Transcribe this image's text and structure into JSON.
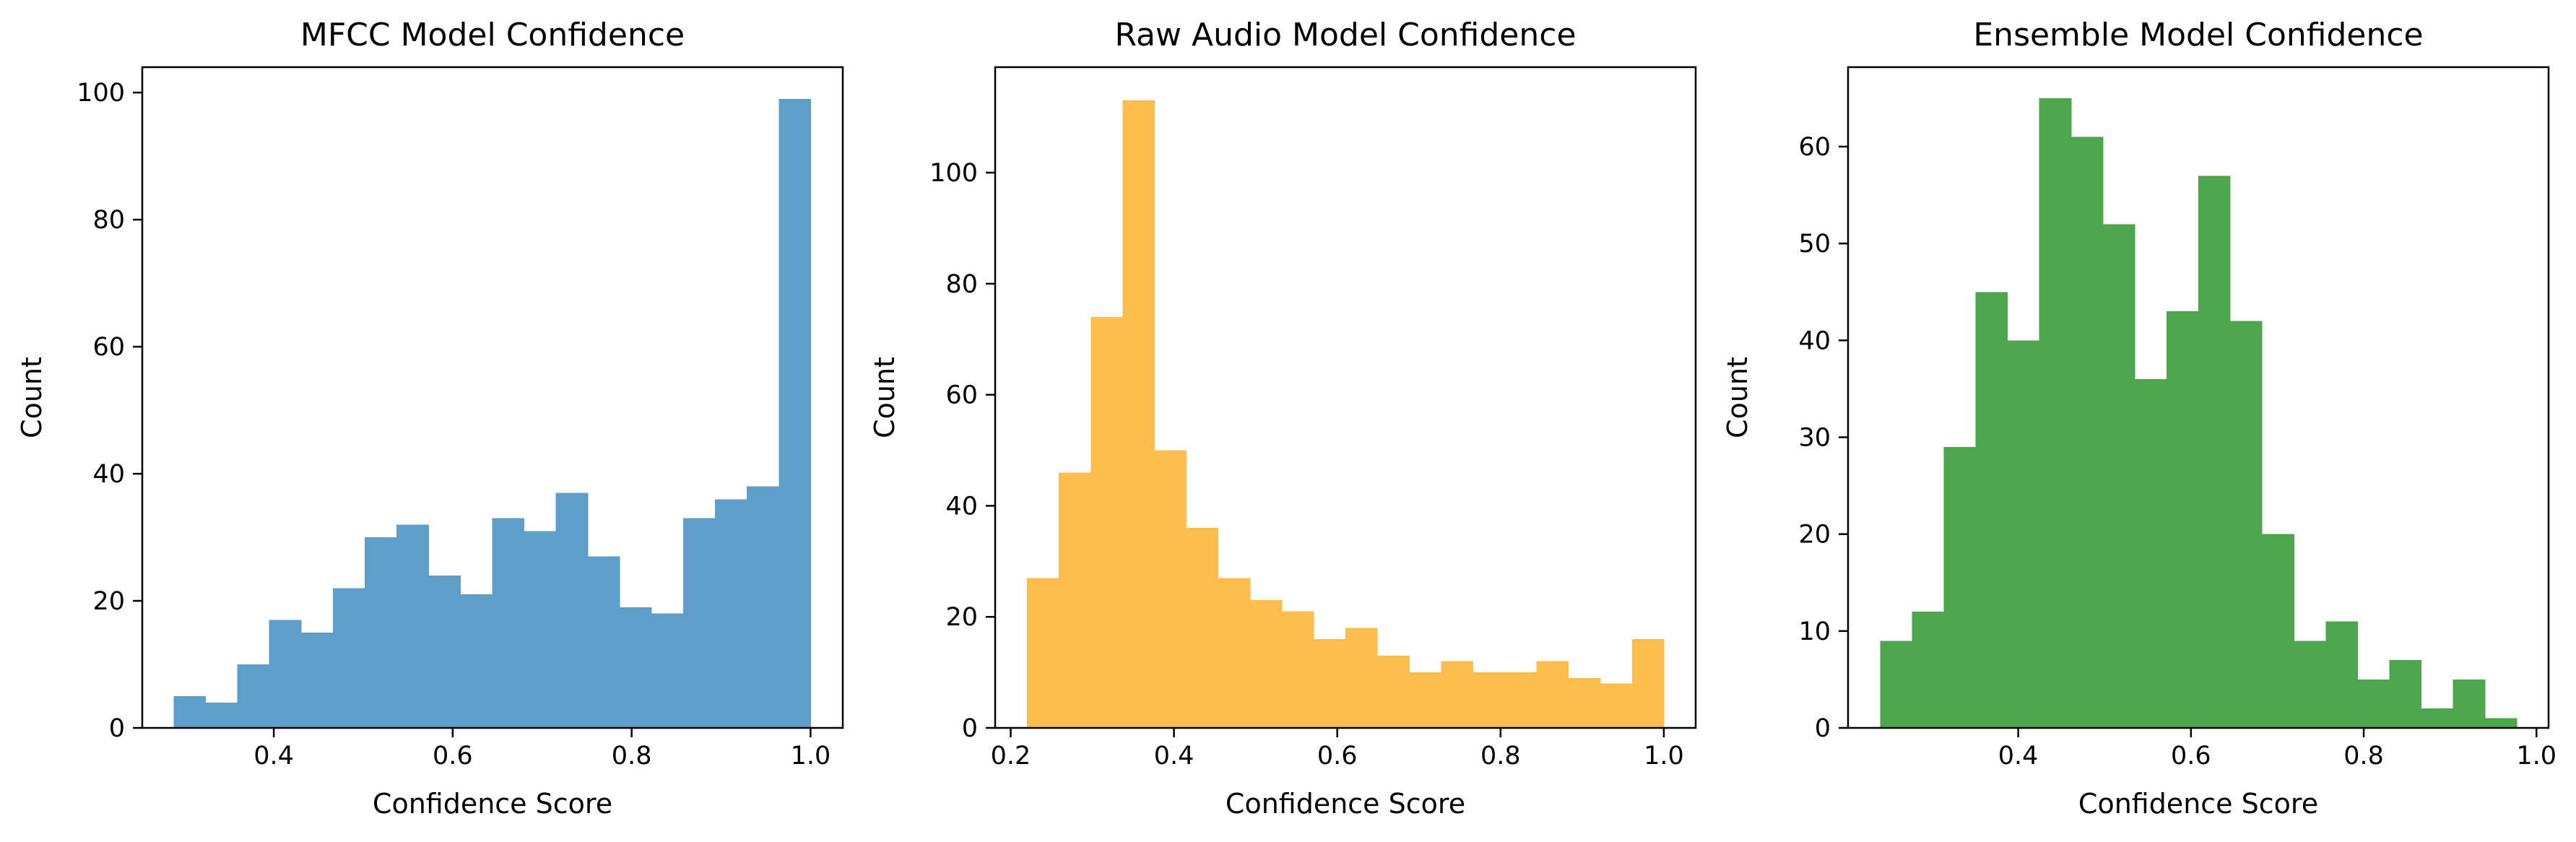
{
  "chart_data": [
    {
      "type": "bar",
      "subtype": "histogram",
      "title": "MFCC Model Confidence",
      "xlabel": "Confidence Score",
      "ylabel": "Count",
      "color": "#5f9ec9",
      "xlim": [
        0.253,
        1.036
      ],
      "ylim": [
        0,
        104
      ],
      "xticks": [
        0.4,
        0.6,
        0.8,
        1.0
      ],
      "xtick_labels": [
        "0.4",
        "0.6",
        "0.8",
        "1.0"
      ],
      "yticks": [
        0,
        20,
        40,
        60,
        80,
        100
      ],
      "ytick_labels": [
        "0",
        "20",
        "40",
        "60",
        "80",
        "100"
      ],
      "bin_start": 0.288,
      "bin_end": 1.0,
      "values": [
        5,
        4,
        10,
        17,
        15,
        22,
        30,
        32,
        24,
        21,
        33,
        31,
        37,
        27,
        19,
        18,
        33,
        36,
        38,
        99
      ],
      "grid": false,
      "legend": "none"
    },
    {
      "type": "bar",
      "subtype": "histogram",
      "title": "Raw Audio Model Confidence",
      "xlabel": "Confidence Score",
      "ylabel": "Count",
      "color": "#fdbd4c",
      "xlim": [
        0.181,
        1.039
      ],
      "ylim": [
        0,
        119
      ],
      "xticks": [
        0.2,
        0.4,
        0.6,
        0.8,
        1.0
      ],
      "xtick_labels": [
        "0.2",
        "0.4",
        "0.6",
        "0.8",
        "1.0"
      ],
      "yticks": [
        0,
        20,
        40,
        60,
        80,
        100
      ],
      "ytick_labels": [
        "0",
        "20",
        "40",
        "60",
        "80",
        "100"
      ],
      "bin_start": 0.22,
      "bin_end": 1.0,
      "values": [
        27,
        46,
        74,
        113,
        50,
        36,
        27,
        23,
        21,
        16,
        18,
        13,
        10,
        12,
        10,
        10,
        12,
        9,
        8,
        16
      ],
      "grid": false,
      "legend": "none"
    },
    {
      "type": "bar",
      "subtype": "histogram",
      "title": "Ensemble Model Confidence",
      "xlabel": "Confidence Score",
      "ylabel": "Count",
      "color": "#4ca64c",
      "xlim": [
        0.203,
        1.014
      ],
      "ylim": [
        0,
        68.2
      ],
      "xticks": [
        0.4,
        0.6,
        0.8,
        1.0
      ],
      "xtick_labels": [
        "0.4",
        "0.6",
        "0.8",
        "1.0"
      ],
      "yticks": [
        0,
        10,
        20,
        30,
        40,
        50,
        60
      ],
      "ytick_labels": [
        "0",
        "10",
        "20",
        "30",
        "40",
        "50",
        "60"
      ],
      "bin_start": 0.24,
      "bin_end": 0.977,
      "values": [
        9,
        12,
        29,
        45,
        40,
        65,
        61,
        52,
        36,
        43,
        57,
        42,
        20,
        9,
        11,
        5,
        7,
        2,
        5,
        1
      ],
      "grid": false,
      "legend": "none"
    }
  ]
}
